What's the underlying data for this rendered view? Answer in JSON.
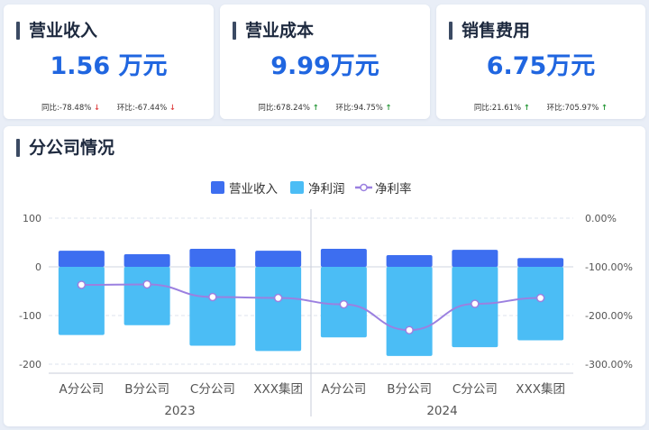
{
  "kpis": [
    {
      "title": "营业收入",
      "value": "1.56 万元",
      "yoy_label": "同比:",
      "yoy_value": "-78.48%",
      "yoy_dir": "down",
      "mom_label": "环比:",
      "mom_value": "-67.44%",
      "mom_dir": "down"
    },
    {
      "title": "营业成本",
      "value": "9.99万元",
      "yoy_label": "同比:",
      "yoy_value": "678.24%",
      "yoy_dir": "up",
      "mom_label": "环比:",
      "mom_value": "94.75%",
      "mom_dir": "up"
    },
    {
      "title": "销售费用",
      "value": "6.75万元",
      "yoy_label": "同比:",
      "yoy_value": "21.61%",
      "yoy_dir": "up",
      "mom_label": "环比:",
      "mom_value": "705.97%",
      "mom_dir": "up"
    }
  ],
  "section": {
    "title": "分公司情况"
  },
  "chart_data": {
    "type": "bar",
    "categories": [
      "A分公司",
      "B分公司",
      "C分公司",
      "XXX集团",
      "A分公司",
      "B分公司",
      "C分公司",
      "XXX集团"
    ],
    "groups": [
      {
        "label": "2023",
        "count": 4
      },
      {
        "label": "2024",
        "count": 4
      }
    ],
    "series": [
      {
        "name": "营业收入",
        "type": "bar",
        "axis": "left",
        "color": "#3d6ef0",
        "values": [
          33,
          26,
          37,
          33,
          37,
          24,
          35,
          18
        ]
      },
      {
        "name": "净利润",
        "type": "bar",
        "axis": "left",
        "color": "#4bbdf5",
        "values": [
          -140,
          -120,
          -162,
          -173,
          -145,
          -183,
          -165,
          -151
        ]
      },
      {
        "name": "净利率",
        "type": "line",
        "axis": "right",
        "color": "#9b80e0",
        "values": [
          -137,
          -136,
          -162,
          -164,
          -177,
          -230,
          -176,
          -164
        ]
      }
    ],
    "left_axis": {
      "min": -200,
      "max": 100,
      "ticks": [
        "100",
        "0",
        "-100",
        "-200"
      ],
      "tick_values": [
        100,
        0,
        -100,
        -200
      ]
    },
    "right_axis": {
      "min": -300,
      "max": 0,
      "ticks": [
        "0.00%",
        "-100.00%",
        "-200.00%",
        "-300.00%"
      ],
      "tick_values": [
        0,
        -100,
        -200,
        -300
      ]
    },
    "legend_position": "top",
    "grid": true
  }
}
